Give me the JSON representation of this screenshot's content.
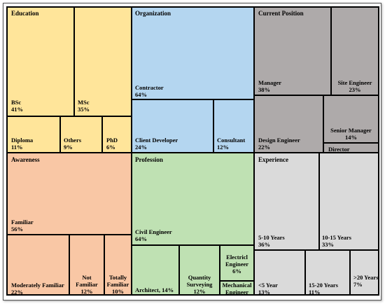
{
  "chart_data": {
    "type": "treemap",
    "colors": {
      "education": "#FFE59A",
      "organization": "#B4D6F0",
      "current_position": "#AEAAAA",
      "awareness": "#F9C7A5",
      "profession": "#BFE1B3",
      "experience": "#DADADA"
    },
    "groups": [
      {
        "name": "Education",
        "items": [
          {
            "label": "BSc",
            "value": "41%"
          },
          {
            "label": "MSc",
            "value": "35%"
          },
          {
            "label": "Diploma",
            "value": "11%"
          },
          {
            "label": "Others",
            "value": "9%"
          },
          {
            "label": "PhD",
            "value": "6%"
          }
        ]
      },
      {
        "name": "Organization",
        "items": [
          {
            "label": "Contractor",
            "value": "64%"
          },
          {
            "label": "Client Developer",
            "value": "24%"
          },
          {
            "label": "Consultant",
            "value": "12%"
          }
        ]
      },
      {
        "name": "Current Position",
        "items": [
          {
            "label": "Manager",
            "value": "38%"
          },
          {
            "label": "Site Engineer",
            "value": "23%"
          },
          {
            "label": "Design Engineer",
            "value": "22%"
          },
          {
            "label": "Senior Manager",
            "value": "14%"
          },
          {
            "label": "Director",
            "value": ""
          }
        ]
      },
      {
        "name": "Awareness",
        "items": [
          {
            "label": "Familiar",
            "value": "56%"
          },
          {
            "label": "Moderately Familiar",
            "value": "22%"
          },
          {
            "label": "Not Familiar",
            "value": "12%"
          },
          {
            "label": "Totally Familiar",
            "value": "10%"
          }
        ]
      },
      {
        "name": "Profession",
        "items": [
          {
            "label": "Civil Engineer",
            "value": "64%"
          },
          {
            "label": "Architect, 14%",
            "value": ""
          },
          {
            "label": "Quantity Surveying",
            "value": "12%"
          },
          {
            "label": "Electricl Engineer",
            "value": "6%"
          },
          {
            "label": "Mechanical Engineer",
            "value": ""
          }
        ]
      },
      {
        "name": "Experience",
        "items": [
          {
            "label": "5-10 Years",
            "value": "36%"
          },
          {
            "label": "10-15 Years",
            "value": "33%"
          },
          {
            "label": "<5 Year",
            "value": "13%"
          },
          {
            "label": "15-20 Years",
            "value": "11%"
          },
          {
            "label": ">20 Years",
            "value": "7%"
          }
        ]
      }
    ]
  }
}
